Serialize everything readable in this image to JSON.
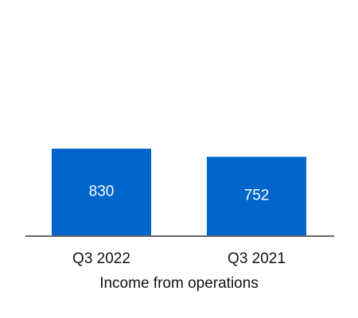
{
  "chart_data": {
    "type": "bar",
    "x_label": "Income from operations",
    "categories": [
      "Q3 2022",
      "Q3 2021"
    ],
    "values": [
      830,
      752
    ],
    "color": "#0066cc"
  }
}
